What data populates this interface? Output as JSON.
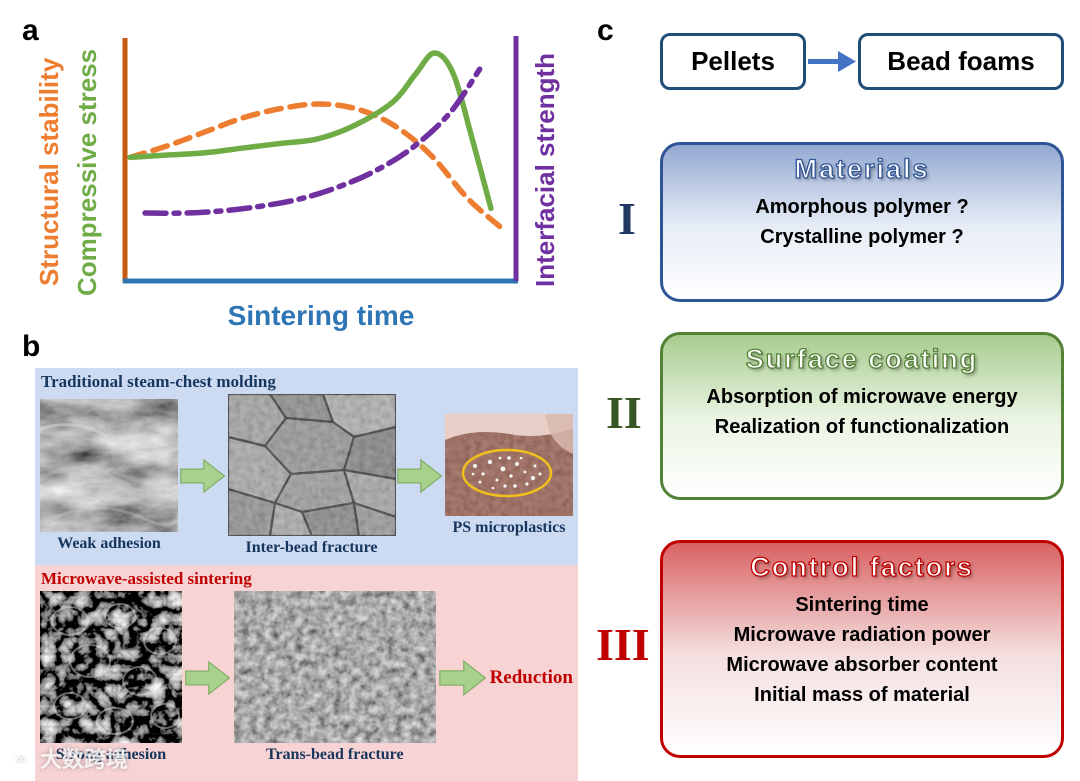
{
  "watermark": {
    "text": "大数跨境",
    "icon": "∞"
  },
  "panel_a": {
    "label": "a",
    "axis_left_outer": "Structural stability",
    "axis_left_inner": "Compressive stress",
    "axis_right": "Interfacial strength",
    "axis_x": "Sintering time",
    "colors": {
      "structural": "#ED7D31",
      "compressive": "#6FAC46",
      "interfacial": "#7030A0",
      "time_axis": "#2E75B6",
      "left_axis": "#C55A11"
    }
  },
  "chart_data": {
    "type": "line",
    "title": "",
    "xlabel": "Sintering time",
    "ylabel_left": [
      "Structural stability",
      "Compressive stress"
    ],
    "ylabel_right": "Interfacial strength",
    "x_range": [
      0,
      1
    ],
    "y_range": [
      0,
      1
    ],
    "grid": false,
    "legend_position": "axis-colored-labels",
    "series": [
      {
        "name": "Structural stability",
        "color": "#ED7D31",
        "style": "dashed",
        "x": [
          0,
          0.1,
          0.2,
          0.3,
          0.4,
          0.5,
          0.6,
          0.7,
          0.8,
          0.9,
          1.0
        ],
        "y": [
          0.52,
          0.57,
          0.63,
          0.69,
          0.73,
          0.75,
          0.73,
          0.66,
          0.53,
          0.34,
          0.2
        ]
      },
      {
        "name": "Compressive stress",
        "color": "#6FAC46",
        "style": "solid",
        "x": [
          0,
          0.1,
          0.2,
          0.3,
          0.4,
          0.5,
          0.6,
          0.7,
          0.76,
          0.81,
          0.86,
          0.91,
          0.96
        ],
        "y": [
          0.52,
          0.53,
          0.54,
          0.56,
          0.58,
          0.6,
          0.66,
          0.76,
          0.88,
          0.97,
          0.88,
          0.6,
          0.3
        ]
      },
      {
        "name": "Interfacial strength",
        "color": "#7030A0",
        "style": "dashdot",
        "x": [
          0.04,
          0.15,
          0.25,
          0.35,
          0.45,
          0.55,
          0.65,
          0.75,
          0.85,
          0.93
        ],
        "y": [
          0.28,
          0.28,
          0.29,
          0.31,
          0.34,
          0.39,
          0.46,
          0.56,
          0.71,
          0.9
        ]
      }
    ]
  },
  "panel_b": {
    "label": "b",
    "colors": {
      "blue_bg": "#CCDAF2",
      "pink_bg": "#F7D3D4",
      "navy_text": "#17365D",
      "red_text": "#C00000",
      "arrow_green": "#A9D18E",
      "arrow_green_edge": "#7FAE5F"
    },
    "traditional": {
      "title": "Traditional steam-chest molding",
      "caption_1": "Weak adhesion",
      "caption_2": "Inter-bead fracture",
      "caption_3": "PS microplastics"
    },
    "microwave": {
      "title": "Microwave-assisted sintering",
      "caption_1": "Strong adhesion",
      "caption_2": "Trans-bead fracture",
      "result": "Reduction"
    }
  },
  "panel_c": {
    "label": "c",
    "flow": {
      "source": "Pellets",
      "target": "Bead foams",
      "border_color": "#1F4E79",
      "arrow_color": "#4472C4"
    },
    "boxes": [
      {
        "numeral": "I",
        "title": "Materials",
        "lines": [
          "Amorphous polymer ?",
          "Crystalline polymer ?"
        ],
        "accent": "#2F5597",
        "numeral_color": "#1F3864",
        "grad_top": "#93A9D1",
        "grad_mid": "#E6ECF6"
      },
      {
        "numeral": "II",
        "title": "Surface coating",
        "lines": [
          "Absorption of microwave energy",
          "Realization of functionalization"
        ],
        "accent": "#538135",
        "numeral_color": "#375623",
        "grad_top": "#A8CC8E",
        "grad_mid": "#EAF4E3"
      },
      {
        "numeral": "III",
        "title": "Control factors",
        "lines": [
          "Sintering time",
          "Microwave radiation power",
          "Microwave absorber content",
          "Initial mass of material"
        ],
        "accent": "#C00000",
        "numeral_color": "#C00000",
        "grad_top": "#D96262",
        "grad_mid": "#F4DEDE"
      }
    ]
  }
}
